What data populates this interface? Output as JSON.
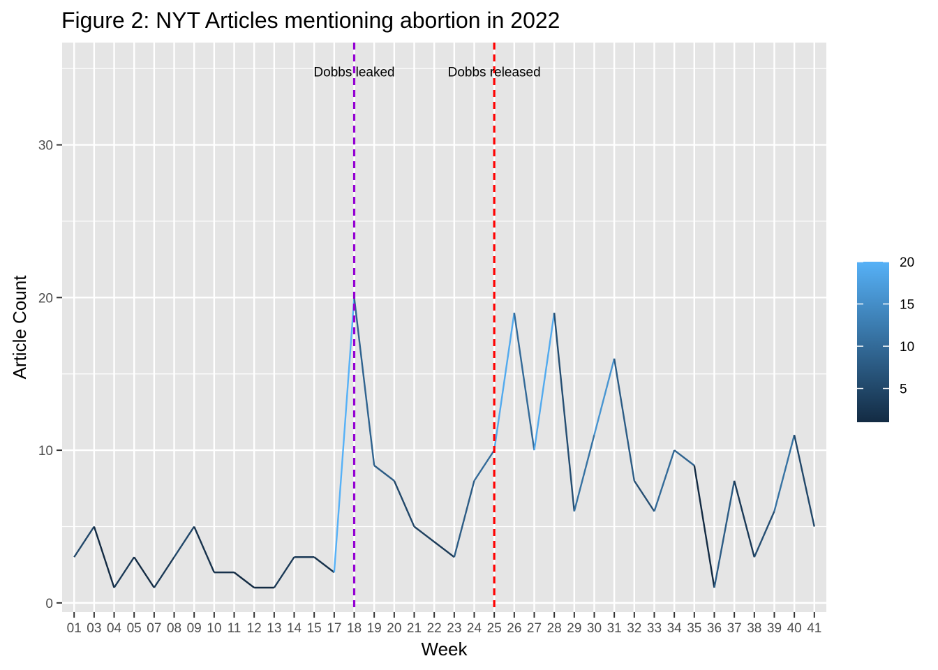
{
  "chart_data": {
    "type": "line",
    "title": "Figure 2: NYT Articles mentioning abortion in 2022",
    "xlabel": "Week",
    "ylabel": "Article Count",
    "categories": [
      "01",
      "03",
      "04",
      "05",
      "07",
      "08",
      "09",
      "10",
      "11",
      "12",
      "13",
      "14",
      "15",
      "17",
      "18",
      "19",
      "20",
      "21",
      "22",
      "23",
      "24",
      "25",
      "26",
      "27",
      "28",
      "29",
      "30",
      "31",
      "32",
      "33",
      "34",
      "35",
      "36",
      "37",
      "38",
      "39",
      "40",
      "41"
    ],
    "values": [
      3,
      5,
      1,
      3,
      1,
      3,
      5,
      2,
      2,
      1,
      1,
      3,
      3,
      2,
      20,
      9,
      8,
      5,
      4,
      3,
      8,
      10,
      19,
      10,
      19,
      6,
      11,
      16,
      8,
      6,
      10,
      9,
      1,
      8,
      3,
      6,
      11,
      5
    ],
    "yticks": [
      0,
      10,
      20,
      30
    ],
    "ylim": [
      -0.6,
      36.7
    ],
    "grid": true,
    "annotations": [
      {
        "label": "Dobbs leaked",
        "week": "18",
        "color": "#9400D3"
      },
      {
        "label": "Dobbs released",
        "week": "25",
        "color": "#FF0000"
      }
    ],
    "legend": {
      "placement": "right",
      "ticks": [
        5,
        10,
        15,
        20
      ],
      "min": 1,
      "max": 20,
      "color_low": "#132B43",
      "color_high": "#56B1F7"
    },
    "colors": {
      "panel_background": "#E5E5E5",
      "grid": "#FFFFFF",
      "tick_text": "#4D4D4D"
    }
  }
}
